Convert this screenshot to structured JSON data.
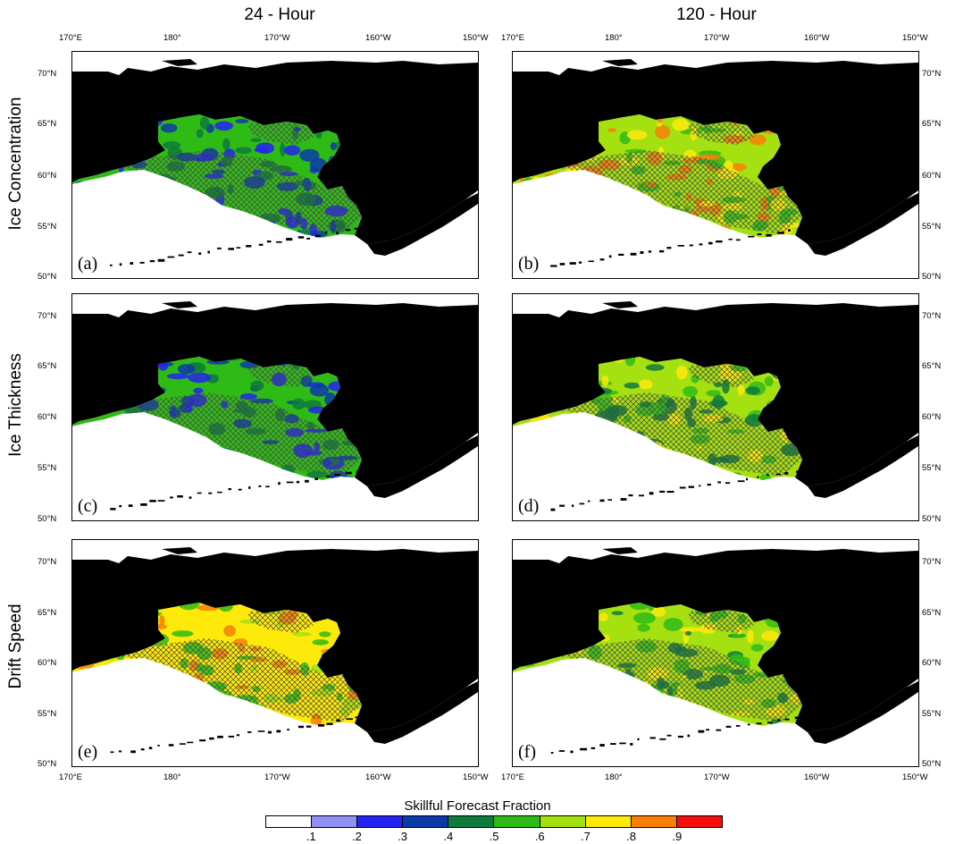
{
  "column_titles": [
    "24 - Hour",
    "120 - Hour"
  ],
  "row_titles": [
    "Ice Concentration",
    "Ice Thickness",
    "Drift Speed"
  ],
  "panel_letters": [
    "(a)",
    "(b)",
    "(c)",
    "(d)",
    "(e)",
    "(f)"
  ],
  "lon_ticks": [
    "170°E",
    "180°",
    "170°W",
    "160°W",
    "150°W"
  ],
  "lat_ticks": [
    "70°N",
    "65°N",
    "60°N",
    "55°N",
    "50°N"
  ],
  "colorbar": {
    "title": "Skillful Forecast Fraction",
    "labels": [
      ".1",
      ".2",
      ".3",
      ".4",
      ".5",
      ".6",
      ".7",
      ".8",
      ".9"
    ],
    "colors": [
      "#ffffff",
      "#8f8ff5",
      "#2323f0",
      "#0a3aa8",
      "#0e7a3c",
      "#2fbb16",
      "#a5e010",
      "#fde90a",
      "#f97f07",
      "#f30d0d"
    ]
  },
  "colors": {
    "land": "#000000",
    "hatch": "#4a4a4a"
  },
  "panel_fill_colors": [
    [
      "#2fbb16",
      "#0a3aa8",
      "#0e7a3c",
      "#2323f0"
    ],
    [
      "#a5e010",
      "#2fbb16",
      "#fde90a",
      "#f97f07"
    ],
    [
      "#2fbb16",
      "#0a3aa8",
      "#0e7a3c",
      "#2323f0"
    ],
    [
      "#a5e010",
      "#2fbb16",
      "#0e7a3c",
      "#fde90a"
    ],
    [
      "#fde90a",
      "#a5e010",
      "#f97f07",
      "#2fbb16"
    ],
    [
      "#a5e010",
      "#2fbb16",
      "#fde90a",
      "#0e7a3c"
    ]
  ]
}
